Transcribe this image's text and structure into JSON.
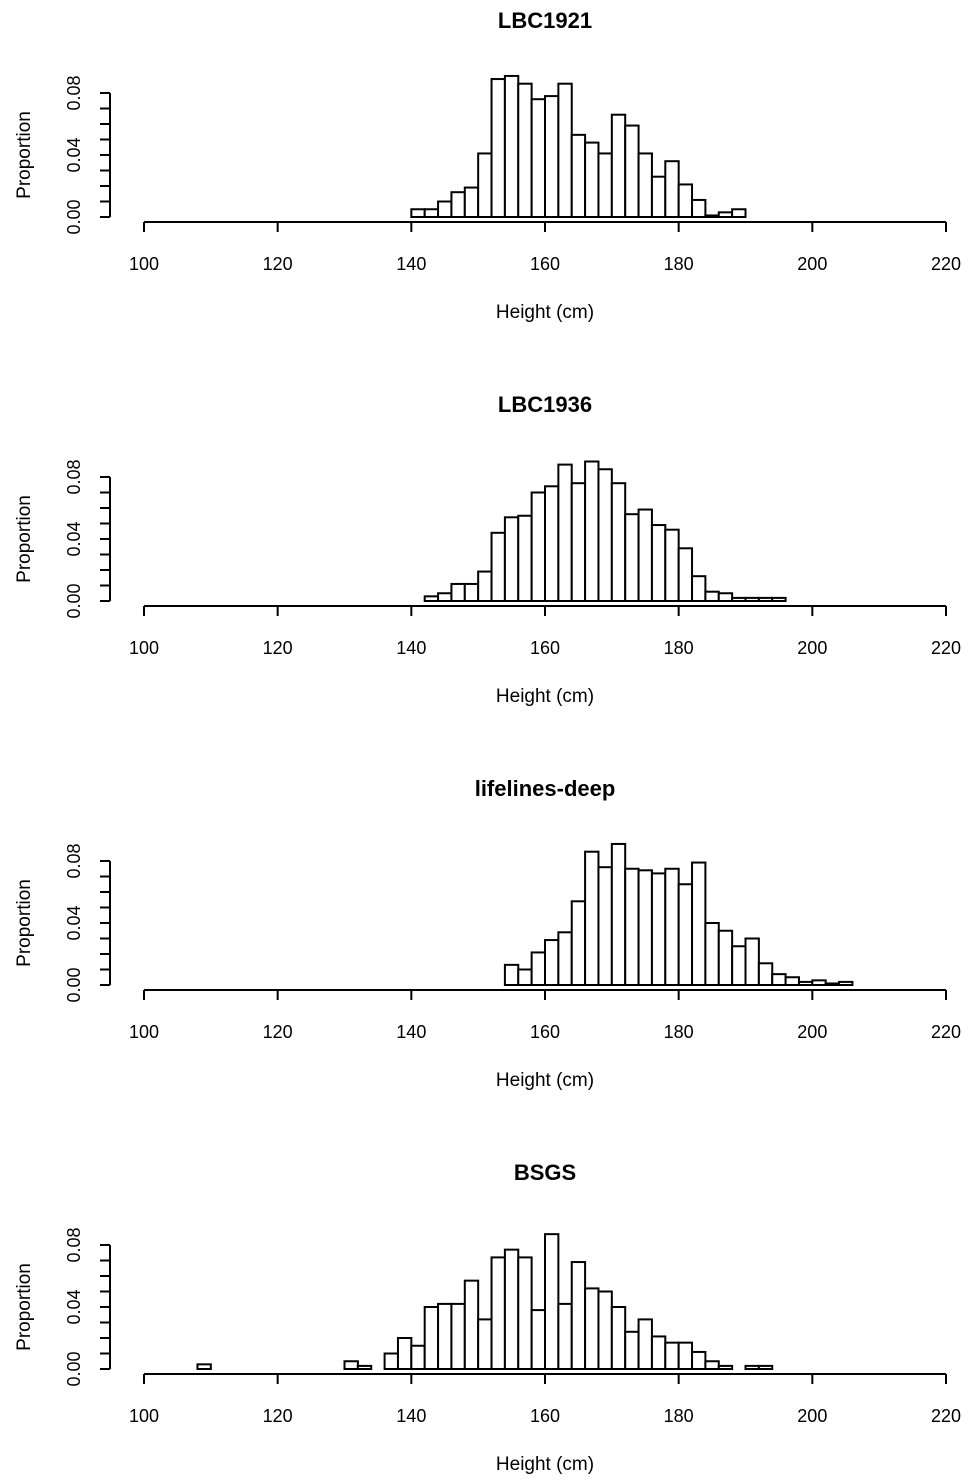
{
  "chart_data": [
    {
      "type": "bar",
      "title": "LBC1921",
      "xlabel": "Height (cm)",
      "ylabel": "Proportion",
      "xlim": [
        100,
        220
      ],
      "ylim": [
        0,
        0.08
      ],
      "x_ticks": [
        "100",
        "120",
        "140",
        "160",
        "180",
        "200",
        "220"
      ],
      "y_ticks": [
        "0.00",
        "0.04",
        "0.08"
      ],
      "bin_width": 2,
      "bin_starts": [
        140,
        142,
        144,
        146,
        148,
        150,
        152,
        154,
        156,
        158,
        160,
        162,
        164,
        166,
        168,
        170,
        172,
        174,
        176,
        178,
        180,
        182,
        184,
        186,
        188
      ],
      "values": [
        0.005,
        0.005,
        0.01,
        0.016,
        0.019,
        0.041,
        0.089,
        0.091,
        0.086,
        0.076,
        0.078,
        0.086,
        0.053,
        0.048,
        0.041,
        0.066,
        0.059,
        0.041,
        0.026,
        0.036,
        0.021,
        0.011,
        0.001,
        0.003,
        0.005
      ]
    },
    {
      "type": "bar",
      "title": "LBC1936",
      "xlabel": "Height (cm)",
      "ylabel": "Proportion",
      "xlim": [
        100,
        220
      ],
      "ylim": [
        0,
        0.08
      ],
      "x_ticks": [
        "100",
        "120",
        "140",
        "160",
        "180",
        "200",
        "220"
      ],
      "y_ticks": [
        "0.00",
        "0.04",
        "0.08"
      ],
      "bin_width": 2,
      "bin_starts": [
        142,
        144,
        146,
        148,
        150,
        152,
        154,
        156,
        158,
        160,
        162,
        164,
        166,
        168,
        170,
        172,
        174,
        176,
        178,
        180,
        182,
        184,
        186,
        188,
        190,
        192,
        194
      ],
      "values": [
        0.003,
        0.005,
        0.011,
        0.011,
        0.019,
        0.044,
        0.054,
        0.055,
        0.07,
        0.074,
        0.088,
        0.076,
        0.09,
        0.085,
        0.076,
        0.056,
        0.059,
        0.049,
        0.046,
        0.034,
        0.016,
        0.006,
        0.005,
        0.002,
        0.002,
        0.002,
        0.002
      ]
    },
    {
      "type": "bar",
      "title": "lifelines-deep",
      "xlabel": "Height (cm)",
      "ylabel": "Proportion",
      "xlim": [
        100,
        220
      ],
      "ylim": [
        0,
        0.08
      ],
      "x_ticks": [
        "100",
        "120",
        "140",
        "160",
        "180",
        "200",
        "220"
      ],
      "y_ticks": [
        "0.00",
        "0.04",
        "0.08"
      ],
      "bin_width": 2,
      "bin_starts": [
        154,
        156,
        158,
        160,
        162,
        164,
        166,
        168,
        170,
        172,
        174,
        176,
        178,
        180,
        182,
        184,
        186,
        188,
        190,
        192,
        194,
        196,
        198,
        200,
        202,
        204
      ],
      "values": [
        0.013,
        0.01,
        0.021,
        0.029,
        0.034,
        0.054,
        0.086,
        0.076,
        0.091,
        0.075,
        0.074,
        0.072,
        0.075,
        0.065,
        0.079,
        0.04,
        0.035,
        0.025,
        0.03,
        0.014,
        0.007,
        0.005,
        0.002,
        0.003,
        0.001,
        0.002
      ]
    },
    {
      "type": "bar",
      "title": "BSGS",
      "xlabel": "Height (cm)",
      "ylabel": "Proportion",
      "xlim": [
        100,
        220
      ],
      "ylim": [
        0,
        0.08
      ],
      "x_ticks": [
        "100",
        "120",
        "140",
        "160",
        "180",
        "200",
        "220"
      ],
      "y_ticks": [
        "0.00",
        "0.04",
        "0.08"
      ],
      "bin_width": 2,
      "bin_starts": [
        108,
        110,
        112,
        114,
        116,
        118,
        120,
        122,
        124,
        126,
        128,
        130,
        132,
        134,
        136,
        138,
        140,
        142,
        144,
        146,
        148,
        150,
        152,
        154,
        156,
        158,
        160,
        162,
        164,
        166,
        168,
        170,
        172,
        174,
        176,
        178,
        180,
        182,
        184,
        186,
        188,
        190,
        192
      ],
      "values": [
        0.003,
        0,
        0,
        0,
        0,
        0,
        0,
        0,
        0,
        0,
        0,
        0.005,
        0.002,
        0,
        0.01,
        0.02,
        0.015,
        0.04,
        0.042,
        0.042,
        0.057,
        0.032,
        0.072,
        0.077,
        0.072,
        0.038,
        0.087,
        0.042,
        0.069,
        0.052,
        0.05,
        0.04,
        0.024,
        0.032,
        0.021,
        0.017,
        0.017,
        0.011,
        0.005,
        0.002,
        0,
        0.002,
        0.002
      ]
    }
  ]
}
